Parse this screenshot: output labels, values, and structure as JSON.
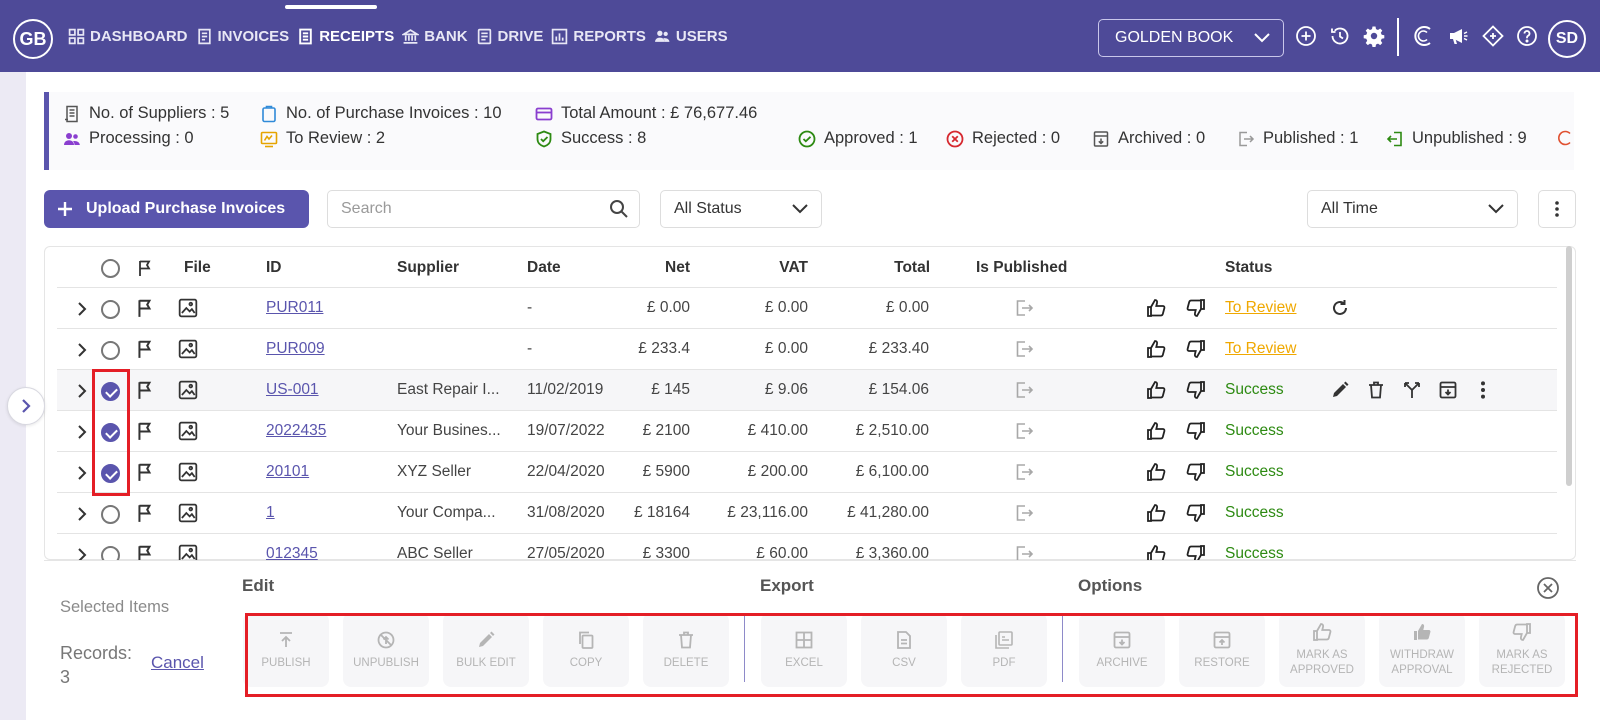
{
  "nav": {
    "brand": "GB",
    "items": [
      {
        "label": "DASHBOARD",
        "icon": "dashboard-icon"
      },
      {
        "label": "INVOICES",
        "icon": "invoice-icon"
      },
      {
        "label": "RECEIPTS",
        "icon": "receipt-icon",
        "active": true
      },
      {
        "label": "BANK",
        "icon": "bank-icon"
      },
      {
        "label": "DRIVE",
        "icon": "drive-icon"
      },
      {
        "label": "REPORTS",
        "icon": "reports-icon"
      },
      {
        "label": "USERS",
        "icon": "users-icon"
      }
    ],
    "company": "GOLDEN BOOK",
    "avatar": "SD"
  },
  "stats": {
    "suppliers": "No. of Suppliers : 5",
    "purchase_invoices": "No. of Purchase Invoices : 10",
    "total_amount": "Total Amount : £ 76,677.46",
    "processing": "Processing : 0",
    "to_review": "To Review : 2",
    "success": "Success : 8",
    "approved": "Approved : 1",
    "rejected": "Rejected : 0",
    "archived": "Archived : 0",
    "published": "Published : 1",
    "unpublished": "Unpublished : 9"
  },
  "toolbar": {
    "upload_label": "Upload Purchase Invoices",
    "search_placeholder": "Search",
    "status_filter": "All Status",
    "time_filter": "All Time"
  },
  "table": {
    "headers": {
      "file": "File",
      "id": "ID",
      "supplier": "Supplier",
      "date": "Date",
      "net": "Net",
      "vat": "VAT",
      "total": "Total",
      "published": "Is Published",
      "status": "Status"
    },
    "rows": [
      {
        "id": "PUR011",
        "supplier": "",
        "date": "-",
        "net": "£ 0.00",
        "vat": "£ 0.00",
        "total": "£ 0.00",
        "status": "To Review",
        "checked": false
      },
      {
        "id": "PUR009",
        "supplier": "",
        "date": "-",
        "net": "£ 233.4",
        "vat": "£ 0.00",
        "total": "£ 233.40",
        "status": "To Review",
        "checked": false
      },
      {
        "id": "US-001",
        "supplier": "East Repair I...",
        "date": "11/02/2019",
        "net": "£ 145",
        "vat": "£ 9.06",
        "total": "£ 154.06",
        "status": "Success",
        "checked": true
      },
      {
        "id": "2022435",
        "supplier": "Your Busines...",
        "date": "19/07/2022",
        "net": "£ 2100",
        "vat": "£ 410.00",
        "total": "£ 2,510.00",
        "status": "Success",
        "checked": true
      },
      {
        "id": "20101",
        "supplier": "XYZ Seller",
        "date": "22/04/2020",
        "net": "£ 5900",
        "vat": "£ 200.00",
        "total": "£ 6,100.00",
        "status": "Success",
        "checked": true
      },
      {
        "id": "1",
        "supplier": "Your Compa...",
        "date": "31/08/2020",
        "net": "£ 18164",
        "vat": "£ 23,116.00",
        "total": "£ 41,280.00",
        "status": "Success",
        "checked": false
      },
      {
        "id": "012345",
        "supplier": "ABC Seller",
        "date": "27/05/2020",
        "net": "£ 3300",
        "vat": "£ 60.00",
        "total": "£ 3,360.00",
        "status": "Success",
        "checked": false
      }
    ]
  },
  "selection": {
    "title": "Selected Items",
    "records_label": "Records:",
    "records_count": "3",
    "cancel_label": "Cancel",
    "groups": {
      "edit": "Edit",
      "export": "Export",
      "options": "Options"
    },
    "actions": {
      "publish": "PUBLISH",
      "unpublish": "UNPUBLISH",
      "bulk_edit": "BULK EDIT",
      "copy": "COPY",
      "delete": "DELETE",
      "excel": "EXCEL",
      "csv": "CSV",
      "pdf": "PDF",
      "archive": "ARCHIVE",
      "restore": "RESTORE",
      "mark_approved_1": "MARK AS",
      "mark_approved_2": "APPROVED",
      "withdraw_1": "WITHDRAW",
      "withdraw_2": "APPROVAL",
      "mark_rejected_1": "MARK AS",
      "mark_rejected_2": "REJECTED"
    }
  },
  "colors": {
    "brand": "#4e4a98",
    "accent": "#5a55ad",
    "success": "#2d8a12",
    "review": "#f0a800",
    "highlight_box": "#e41e26"
  }
}
